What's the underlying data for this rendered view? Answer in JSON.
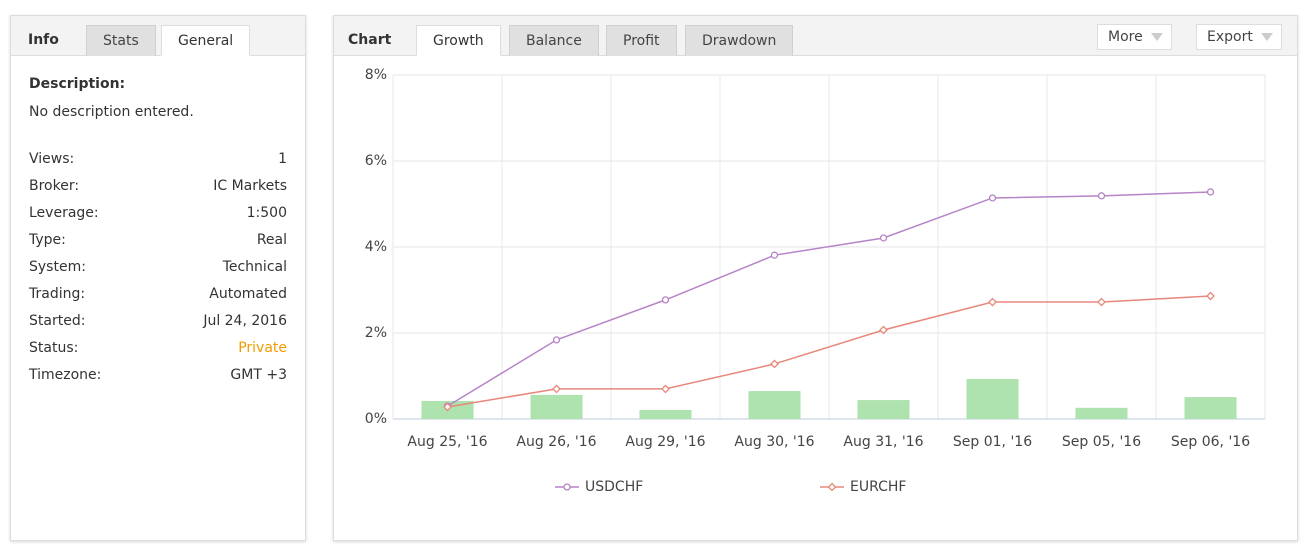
{
  "info_panel": {
    "tabs": [
      "Info",
      "Stats",
      "General"
    ],
    "description_label": "Description:",
    "description": "No description entered.",
    "rows": [
      {
        "label": "Views:",
        "value": "1"
      },
      {
        "label": "Broker:",
        "value": "IC Markets"
      },
      {
        "label": "Leverage:",
        "value": "1:500"
      },
      {
        "label": "Type:",
        "value": "Real"
      },
      {
        "label": "System:",
        "value": "Technical"
      },
      {
        "label": "Trading:",
        "value": "Automated"
      },
      {
        "label": "Started:",
        "value": "Jul 24, 2016"
      },
      {
        "label": "Status:",
        "value": "Private",
        "color": "#f29c00"
      },
      {
        "label": "Timezone:",
        "value": "GMT +3"
      }
    ]
  },
  "chart_panel": {
    "label": "Chart",
    "tabs": [
      "Growth",
      "Balance",
      "Profit",
      "Drawdown"
    ],
    "buttons": [
      "More",
      "Export"
    ]
  },
  "chart_data": {
    "type": "line",
    "categories": [
      "Aug 25, '16",
      "Aug 26, '16",
      "Aug 29, '16",
      "Aug 30, '16",
      "Aug 31, '16",
      "Sep 01, '16",
      "Sep 05, '16",
      "Sep 06, '16"
    ],
    "series": [
      {
        "type": "bar",
        "color": "#aee2ae",
        "values": [
          0.42,
          0.56,
          0.21,
          0.65,
          0.44,
          0.93,
          0.26,
          0.51
        ]
      },
      {
        "name": "USDCHF",
        "color": "#b784c7",
        "marker": "circle",
        "values": [
          0.3,
          1.84,
          2.77,
          3.81,
          4.21,
          5.14,
          5.19,
          5.28
        ]
      },
      {
        "name": "EURCHF",
        "color": "#e8877a",
        "marker": "diamond",
        "values": [
          0.28,
          0.7,
          0.7,
          1.28,
          2.07,
          2.72,
          2.72,
          2.86
        ]
      }
    ],
    "ylim": [
      0,
      8
    ],
    "yticks": [
      {
        "value": 0,
        "label": "0%"
      },
      {
        "value": 2,
        "label": "2%"
      },
      {
        "value": 4,
        "label": "4%"
      },
      {
        "value": 6,
        "label": "6%"
      },
      {
        "value": 8,
        "label": "8%"
      }
    ],
    "grid": true,
    "legend": "bottom"
  }
}
